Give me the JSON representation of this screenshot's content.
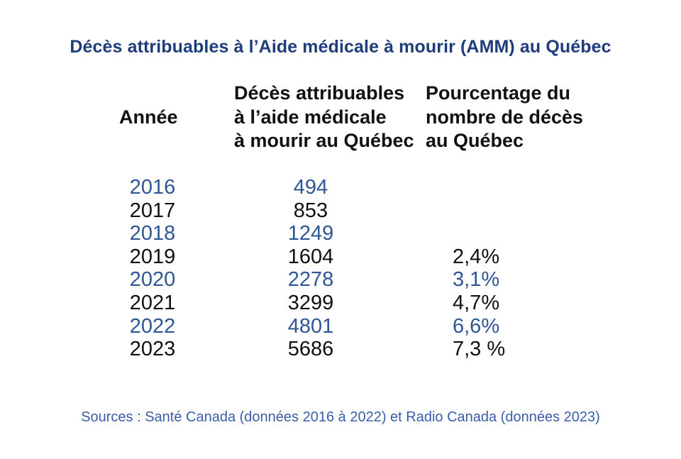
{
  "title": "Décès attribuables à l’Aide médicale à mourir (AMM) au Québec",
  "table": {
    "headers": {
      "year": "Année",
      "deaths_lines": [
        "Décès attribuables",
        "à l’aide médicale",
        "à mourir au Québec"
      ],
      "percentage_lines": [
        "Pourcentage du",
        "nombre de décès",
        "au Québec"
      ]
    },
    "rows": [
      {
        "year": "2016",
        "deaths": "494",
        "percentage": "",
        "highlighted": true
      },
      {
        "year": "2017",
        "deaths": "853",
        "percentage": "",
        "highlighted": false
      },
      {
        "year": "2018",
        "deaths": "1249",
        "percentage": "",
        "highlighted": true
      },
      {
        "year": "2019",
        "deaths": "1604",
        "percentage": "2,4%",
        "highlighted": false
      },
      {
        "year": "2020",
        "deaths": "2278",
        "percentage": "3,1%",
        "highlighted": true
      },
      {
        "year": "2021",
        "deaths": "3299",
        "percentage": "4,7%",
        "highlighted": false
      },
      {
        "year": "2022",
        "deaths": "4801",
        "percentage": "6,6%",
        "highlighted": true
      },
      {
        "year": "2023",
        "deaths": "5686",
        "percentage": "7,3 %",
        "highlighted": false
      }
    ]
  },
  "source": "Sources : Santé Canada (données 2016 à 2022) et Radio Canada (données 2023)",
  "colors": {
    "background": "#ffffff",
    "title": "#1f3d7c",
    "header_text": "#111111",
    "row_default": "#111111",
    "row_highlight": "#2e5596",
    "source": "#3a5da9"
  },
  "chart_data": {
    "type": "table",
    "title": "Décès attribuables à l’Aide médicale à mourir (AMM) au Québec",
    "columns": [
      "Année",
      "Décès attribuables à l’aide médicale à mourir au Québec",
      "Pourcentage du nombre de décès au Québec"
    ],
    "rows": [
      {
        "annee": 2016,
        "deces": 494,
        "pourcentage": null
      },
      {
        "annee": 2017,
        "deces": 853,
        "pourcentage": null
      },
      {
        "annee": 2018,
        "deces": 1249,
        "pourcentage": null
      },
      {
        "annee": 2019,
        "deces": 1604,
        "pourcentage": "2,4%"
      },
      {
        "annee": 2020,
        "deces": 2278,
        "pourcentage": "3,1%"
      },
      {
        "annee": 2021,
        "deces": 3299,
        "pourcentage": "4,7%"
      },
      {
        "annee": 2022,
        "deces": 4801,
        "pourcentage": "6,6%"
      },
      {
        "annee": 2023,
        "deces": 5686,
        "pourcentage": "7,3 %"
      }
    ],
    "source": "Sources : Santé Canada (données 2016 à 2022) et Radio Canada (données 2023)",
    "layout": {
      "highlighted_row_color_years": [
        2016,
        2018,
        2020,
        2022
      ],
      "grid": false
    }
  }
}
